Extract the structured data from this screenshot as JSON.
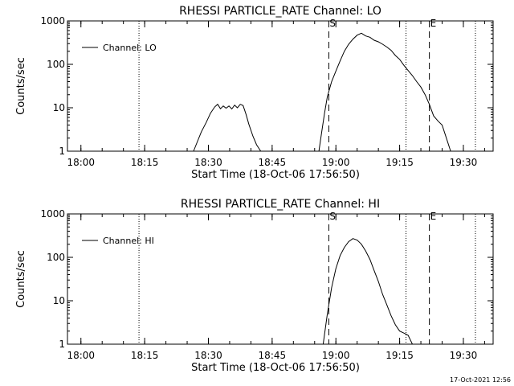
{
  "footer_timestamp": "17-Oct-2021 12:56",
  "chart_data": [
    {
      "type": "line",
      "title": "RHESSI PARTICLE_RATE Channel: LO",
      "xlabel": "Start Time (18-Oct-06 17:56:50)",
      "ylabel": "Counts/sec",
      "y_scale": "log",
      "xlim": [
        "17:56:50",
        "19:37:00"
      ],
      "ylim": [
        1,
        1000
      ],
      "x_ticks": [
        "18:00",
        "18:15",
        "18:30",
        "18:45",
        "19:00",
        "19:15",
        "19:30"
      ],
      "y_ticks": [
        "1",
        "10",
        "100",
        "1000"
      ],
      "legend": {
        "position": "top-left",
        "entries": [
          "Channel: LO"
        ]
      },
      "markers": [
        {
          "label": "S",
          "time": "18:58:20",
          "style": "dashed"
        },
        {
          "label": "E",
          "time": "19:22:00",
          "style": "dashed"
        }
      ],
      "ref_lines": [
        {
          "time": "18:13:40",
          "style": "dotted"
        },
        {
          "time": "19:16:30",
          "style": "dotted"
        },
        {
          "time": "19:32:50",
          "style": "dotted"
        }
      ],
      "series": [
        {
          "name": "Channel: LO",
          "segments": [
            {
              "x": [
                "18:26:30",
                "18:27:20",
                "18:28:20",
                "18:29:30",
                "18:30:30",
                "18:31:30",
                "18:32:10",
                "18:32:50",
                "18:33:30",
                "18:34:10",
                "18:34:50",
                "18:35:30",
                "18:36:10",
                "18:36:50",
                "18:37:30",
                "18:38:10",
                "18:38:50",
                "18:39:30",
                "18:40:30",
                "18:41:20",
                "18:42:20"
              ],
              "y": [
                1,
                1.6,
                2.8,
                4.6,
                7.5,
                10.5,
                12.0,
                9.5,
                11.0,
                9.8,
                11.0,
                9.4,
                11.5,
                10.0,
                12.0,
                11.2,
                7.2,
                4.2,
                2.2,
                1.4,
                1
              ]
            },
            {
              "x": [
                "18:56:00",
                "18:56:40",
                "18:57:20",
                "18:58:00",
                "18:59:00",
                "19:00:00",
                "19:01:00",
                "19:02:00",
                "19:03:00",
                "19:04:00",
                "19:05:00",
                "19:06:00",
                "19:07:00",
                "19:08:00",
                "19:09:00",
                "19:10:00",
                "19:11:00",
                "19:12:00",
                "19:13:00",
                "19:14:00",
                "19:15:00",
                "19:16:00",
                "19:17:00",
                "19:18:00",
                "19:19:00",
                "19:20:00",
                "19:21:00",
                "19:22:00",
                "19:23:00",
                "19:24:00",
                "19:25:00",
                "19:26:00",
                "19:27:00"
              ],
              "y": [
                1,
                2.8,
                7.5,
                18,
                40,
                70,
                120,
                200,
                290,
                380,
                470,
                520,
                450,
                420,
                360,
                330,
                290,
                250,
                210,
                160,
                130,
                95,
                72,
                55,
                40,
                30,
                20,
                12,
                6.5,
                5.0,
                4.0,
                2.0,
                1
              ]
            }
          ]
        }
      ]
    },
    {
      "type": "line",
      "title": "RHESSI PARTICLE_RATE Channel: HI",
      "xlabel": "Start Time (18-Oct-06 17:56:50)",
      "ylabel": "Counts/sec",
      "y_scale": "log",
      "xlim": [
        "17:56:50",
        "19:37:00"
      ],
      "ylim": [
        1,
        1000
      ],
      "x_ticks": [
        "18:00",
        "18:15",
        "18:30",
        "18:45",
        "19:00",
        "19:15",
        "19:30"
      ],
      "y_ticks": [
        "1",
        "10",
        "100",
        "1000"
      ],
      "legend": {
        "position": "top-left",
        "entries": [
          "Channel: HI"
        ]
      },
      "markers": [
        {
          "label": "S",
          "time": "18:58:20",
          "style": "dashed"
        },
        {
          "label": "E",
          "time": "19:22:00",
          "style": "dashed"
        }
      ],
      "ref_lines": [
        {
          "time": "18:13:40",
          "style": "dotted"
        },
        {
          "time": "19:16:30",
          "style": "dotted"
        },
        {
          "time": "19:32:50",
          "style": "dotted"
        }
      ],
      "series": [
        {
          "name": "Channel: HI",
          "segments": [
            {
              "x": [
                "18:57:00",
                "18:58:00",
                "18:59:00",
                "19:00:00",
                "19:01:00",
                "19:02:00",
                "19:03:00",
                "19:04:00",
                "19:05:00",
                "19:06:00",
                "19:07:00",
                "19:08:00",
                "19:09:00",
                "19:10:00",
                "19:11:00",
                "19:12:00",
                "19:13:00",
                "19:14:00",
                "19:15:00",
                "19:16:00",
                "19:17:00",
                "19:18:00"
              ],
              "y": [
                1,
                5,
                20,
                55,
                110,
                170,
                230,
                270,
                250,
                200,
                140,
                90,
                50,
                28,
                14,
                8,
                4.5,
                2.8,
                2.0,
                1.8,
                1.6,
                1
              ]
            }
          ]
        }
      ]
    }
  ]
}
